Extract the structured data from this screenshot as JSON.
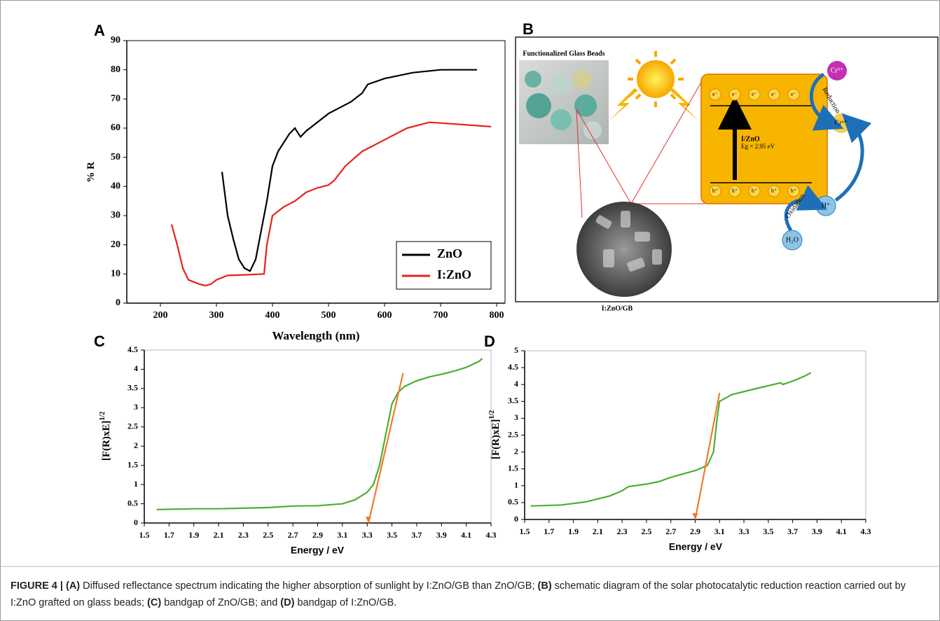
{
  "chart_data": [
    {
      "type": "line",
      "panel": "A",
      "xlabel": "Wavelength (nm)",
      "ylabel": "% R",
      "xlim": [
        140,
        815
      ],
      "xticks": [
        200,
        300,
        400,
        500,
        600,
        700,
        800
      ],
      "ylim": [
        0,
        90
      ],
      "yticks": [
        0,
        10,
        20,
        30,
        40,
        50,
        60,
        70,
        80,
        90
      ],
      "legend": "lower right",
      "series": [
        {
          "name": "ZnO",
          "color": "#000000",
          "x": [
            310,
            320,
            330,
            340,
            350,
            360,
            370,
            380,
            390,
            400,
            410,
            420,
            430,
            440,
            450,
            460,
            480,
            500,
            520,
            540,
            560,
            570,
            600,
            650,
            700,
            765
          ],
          "values": [
            45,
            30,
            22,
            15,
            12,
            11,
            15,
            25,
            35,
            47,
            52,
            55,
            58,
            60,
            57,
            59,
            62,
            65,
            67,
            69,
            72,
            75,
            77,
            79,
            80,
            80
          ]
        },
        {
          "name": "I:ZnO",
          "color": "#e8201c",
          "x": [
            220,
            230,
            240,
            250,
            270,
            280,
            290,
            300,
            320,
            350,
            385,
            390,
            400,
            420,
            440,
            460,
            480,
            500,
            510,
            530,
            560,
            600,
            640,
            680,
            720,
            790
          ],
          "values": [
            27,
            20,
            12,
            8,
            6.5,
            6,
            6.5,
            8,
            9.5,
            9.7,
            10,
            20,
            30,
            33,
            35,
            38,
            39.5,
            40.5,
            42,
            47,
            52,
            56,
            60,
            62,
            61.5,
            60.5
          ]
        }
      ]
    },
    {
      "type": "line",
      "panel": "C",
      "xlabel": "Energy / eV",
      "ylabel": "[F(R)xE]",
      "ylabel_sup": "1/2",
      "xlim": [
        1.5,
        4.3
      ],
      "xticks": [
        1.5,
        1.7,
        1.9,
        2.1,
        2.3,
        2.5,
        2.7,
        2.9,
        3.1,
        3.3,
        3.5,
        3.7,
        3.9,
        4.1,
        4.3
      ],
      "ylim": [
        0,
        4.5
      ],
      "yticks": [
        0,
        0.5,
        1,
        1.5,
        2,
        2.5,
        3,
        3.5,
        4,
        4.5
      ],
      "series": [
        {
          "color": "#4caf30",
          "x": [
            1.6,
            1.9,
            2.1,
            2.5,
            2.7,
            2.9,
            3.1,
            3.2,
            3.3,
            3.35,
            3.4,
            3.45,
            3.5,
            3.55,
            3.6,
            3.7,
            3.8,
            3.9,
            4.0,
            4.1,
            4.2,
            4.23
          ],
          "values": [
            0.35,
            0.37,
            0.37,
            0.4,
            0.44,
            0.45,
            0.5,
            0.6,
            0.8,
            1.0,
            1.5,
            2.3,
            3.1,
            3.4,
            3.55,
            3.7,
            3.8,
            3.87,
            3.95,
            4.05,
            4.2,
            4.28
          ]
        },
        {
          "color": "#f07b2a",
          "x": [
            3.31,
            3.59
          ],
          "values": [
            0,
            3.9
          ]
        }
      ]
    },
    {
      "type": "line",
      "panel": "D",
      "xlabel": "Energy / eV",
      "ylabel": "[F(R)xE]",
      "ylabel_sup": "1/2",
      "xlim": [
        1.5,
        4.3
      ],
      "xticks": [
        1.5,
        1.7,
        1.9,
        2.1,
        2.3,
        2.5,
        2.7,
        2.9,
        3.1,
        3.3,
        3.5,
        3.7,
        3.9,
        4.1,
        4.3
      ],
      "ylim": [
        0,
        5
      ],
      "yticks": [
        0,
        0.5,
        1,
        1.5,
        2,
        2.5,
        3,
        3.5,
        4,
        4.5,
        5
      ],
      "series": [
        {
          "color": "#4caf30",
          "x": [
            1.55,
            1.8,
            2.0,
            2.2,
            2.3,
            2.35,
            2.5,
            2.6,
            2.7,
            2.9,
            3.0,
            3.05,
            3.08,
            3.1,
            3.2,
            3.4,
            3.6,
            3.62,
            3.7,
            3.8,
            3.85
          ],
          "values": [
            0.4,
            0.43,
            0.52,
            0.7,
            0.85,
            0.97,
            1.05,
            1.12,
            1.25,
            1.45,
            1.6,
            2.0,
            3.0,
            3.5,
            3.7,
            3.88,
            4.05,
            4.0,
            4.1,
            4.25,
            4.35
          ]
        },
        {
          "color": "#f07b2a",
          "x": [
            2.9,
            3.1
          ],
          "values": [
            0,
            3.75
          ]
        }
      ]
    }
  ],
  "diagram": {
    "panel": "B",
    "photo_label": "Functionalized Glass Beads",
    "electrons": [
      "e⁻",
      "e⁻",
      "e⁻",
      "e⁻",
      "e⁻"
    ],
    "holes": [
      "h⁺",
      "h⁺",
      "h⁺",
      "h⁺",
      "h⁺"
    ],
    "material": "I/ZnO",
    "bandgap": "Eg = 2.95 eV",
    "cr3": "Cr³⁺",
    "cr6": "Cr⁶⁺",
    "reduction": "Reduction",
    "oxidation": "Oxidation",
    "h_ion": "H⁺",
    "water": "H₂O",
    "sem_label": "I:ZnO/GB"
  },
  "caption": [
    {
      "text": "FIGURE 4 | (A)",
      "bold": true
    },
    {
      "text": " Diffused reflectance spectrum indicating the higher absorption of sunlight by I:ZnO/GB than ZnO/GB; ",
      "bold": false
    },
    {
      "text": "(B)",
      "bold": true
    },
    {
      "text": " schematic diagram of the solar photocatalytic reduction reaction carried out by I:ZnO grafted on glass beads; ",
      "bold": false
    },
    {
      "text": "(C)",
      "bold": true
    },
    {
      "text": " bandgap of ZnO/GB; and ",
      "bold": false
    },
    {
      "text": "(D)",
      "bold": true
    },
    {
      "text": " bandgap of I:ZnO/GB.",
      "bold": false
    }
  ]
}
